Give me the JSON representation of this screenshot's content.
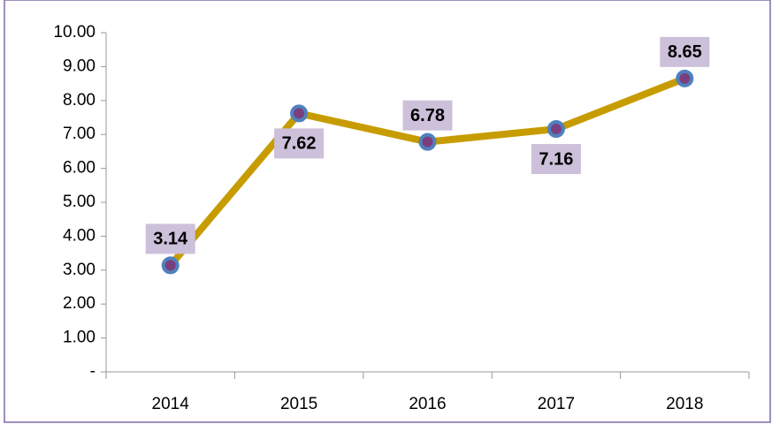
{
  "chart_data": {
    "type": "line",
    "categories": [
      "2014",
      "2015",
      "2016",
      "2017",
      "2018"
    ],
    "values": [
      3.14,
      7.62,
      6.78,
      7.16,
      8.65
    ],
    "color": "#c79c00",
    "marker_color": "#4f81bd",
    "ylim": [
      0,
      10
    ],
    "yticks": [
      {
        "value": 0,
        "label": "-"
      },
      {
        "value": 1,
        "label": "1.00"
      },
      {
        "value": 2,
        "label": "2.00"
      },
      {
        "value": 3,
        "label": "3.00"
      },
      {
        "value": 4,
        "label": "4.00"
      },
      {
        "value": 5,
        "label": "5.00"
      },
      {
        "value": 6,
        "label": "6.00"
      },
      {
        "value": 7,
        "label": "7.00"
      },
      {
        "value": 8,
        "label": "8.00"
      },
      {
        "value": 9,
        "label": "9.00"
      },
      {
        "value": 10,
        "label": "10.00"
      }
    ]
  }
}
